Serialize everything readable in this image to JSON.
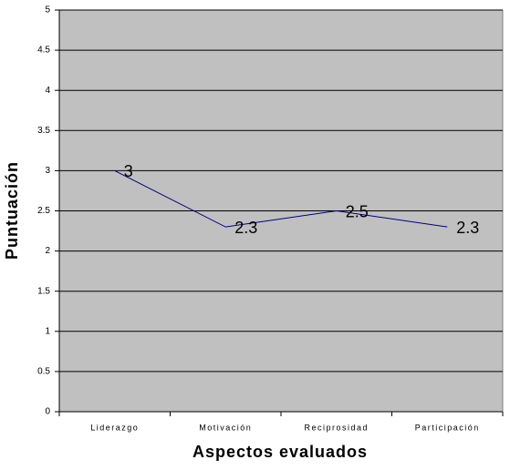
{
  "chart_data": {
    "type": "line",
    "categories": [
      "Liderazgo",
      "Motivación",
      "Reciprosidad",
      "Participación"
    ],
    "series": [
      {
        "color": "#000080",
        "values": [
          3,
          2.3,
          2.5,
          2.3
        ]
      }
    ],
    "x_label": "Aspectos evaluados",
    "y_label": "Puntuación",
    "ylim": [
      0,
      5
    ],
    "yticks": [
      0,
      0.5,
      1,
      1.5,
      2,
      2.5,
      3,
      3.5,
      4,
      4.5,
      5
    ],
    "grid": true,
    "plot_background": "#c0c0c0"
  }
}
